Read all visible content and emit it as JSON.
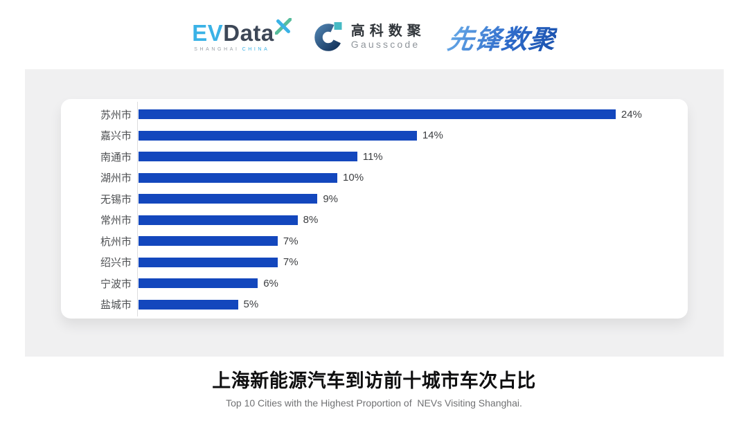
{
  "header": {
    "evdata": {
      "ev": "EV",
      "data": "Data",
      "sub_left": "SHANGHAI",
      "sub_right": "CHINA"
    },
    "gausscode": {
      "cn": "高科数聚",
      "en": "Gausscode"
    },
    "pioneer": {
      "text": "先锋数聚"
    }
  },
  "chart_data": {
    "type": "bar",
    "orientation": "horizontal",
    "categories": [
      "苏州市",
      "嘉兴市",
      "南通市",
      "湖州市",
      "无锡市",
      "常州市",
      "杭州市",
      "绍兴市",
      "宁波市",
      "盐城市"
    ],
    "values": [
      24,
      14,
      11,
      10,
      9,
      8,
      7,
      7,
      6,
      5
    ],
    "value_labels": [
      "24%",
      "14%",
      "11%",
      "10%",
      "9%",
      "8%",
      "7%",
      "7%",
      "6%",
      "5%"
    ],
    "xlim": [
      0,
      27
    ],
    "grid": false,
    "bar_color": "#1347bd",
    "axis_line_color": "#dcdcde"
  },
  "caption": {
    "title": "上海新能源汽车到访前十城市车次占比",
    "subtitle": "Top 10 Cities with the Highest Proportion of  NEVs Visiting Shanghai."
  },
  "colors": {
    "panel_background": "#f0f0f1",
    "card_background": "#ffffff",
    "bar_blue": "#1347bd",
    "evdata_blue": "#3ab2e6",
    "evdata_navy": "#3d4757",
    "gausscode_teal": "#46bac4",
    "pioneer_blue": "#2f6ccb"
  }
}
